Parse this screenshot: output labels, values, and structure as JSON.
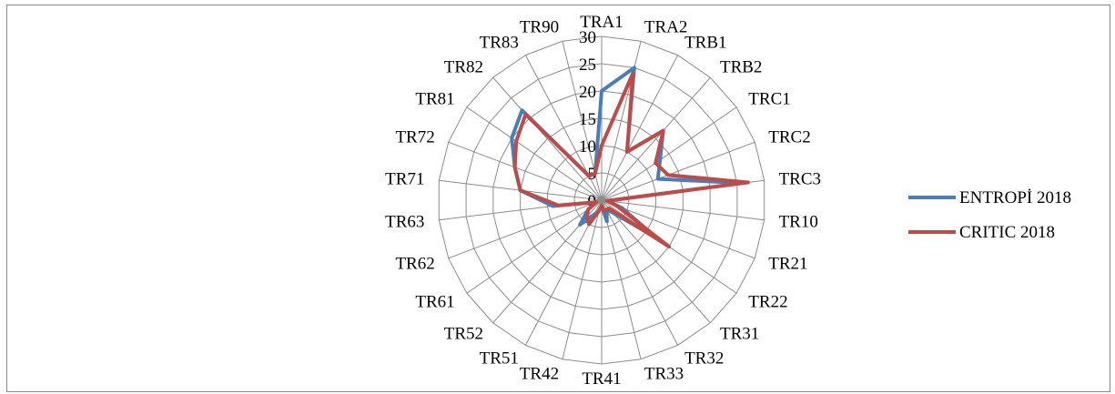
{
  "chart_data": {
    "type": "radar",
    "categories": [
      "TRA1",
      "TRA2",
      "TRB1",
      "TRB2",
      "TRC1",
      "TRC2",
      "TRC3",
      "TR10",
      "TR21",
      "TR22",
      "TR31",
      "TR32",
      "TR33",
      "TR41",
      "TR42",
      "TR51",
      "TR52",
      "TR61",
      "TR62",
      "TR63",
      "TR71",
      "TR72",
      "TR81",
      "TR82",
      "TR83",
      "TR90"
    ],
    "rlim": [
      0,
      30
    ],
    "rticks": [
      0,
      5,
      10,
      15,
      20,
      25,
      30
    ],
    "rtick_labels": [
      "0",
      "5",
      "10",
      "15",
      "20",
      "25",
      "30"
    ],
    "grid": true,
    "legend_position": "right",
    "series": [
      {
        "name": "ENTROPİ 2018",
        "color": "#4a7ebb",
        "values": [
          20,
          25,
          10,
          17,
          13,
          11,
          26,
          1,
          4,
          12,
          3,
          2,
          4,
          1,
          2,
          3,
          6,
          3,
          1,
          9,
          15,
          17,
          20,
          22,
          5,
          5
        ]
      },
      {
        "name": "CRITIC 2018",
        "color": "#be4b48",
        "values": [
          10,
          24,
          10,
          17,
          12,
          13,
          27,
          1,
          3,
          15,
          2,
          2,
          2,
          1,
          2,
          5,
          4,
          3,
          1,
          8,
          15,
          17,
          19,
          21,
          5,
          5
        ]
      }
    ]
  }
}
